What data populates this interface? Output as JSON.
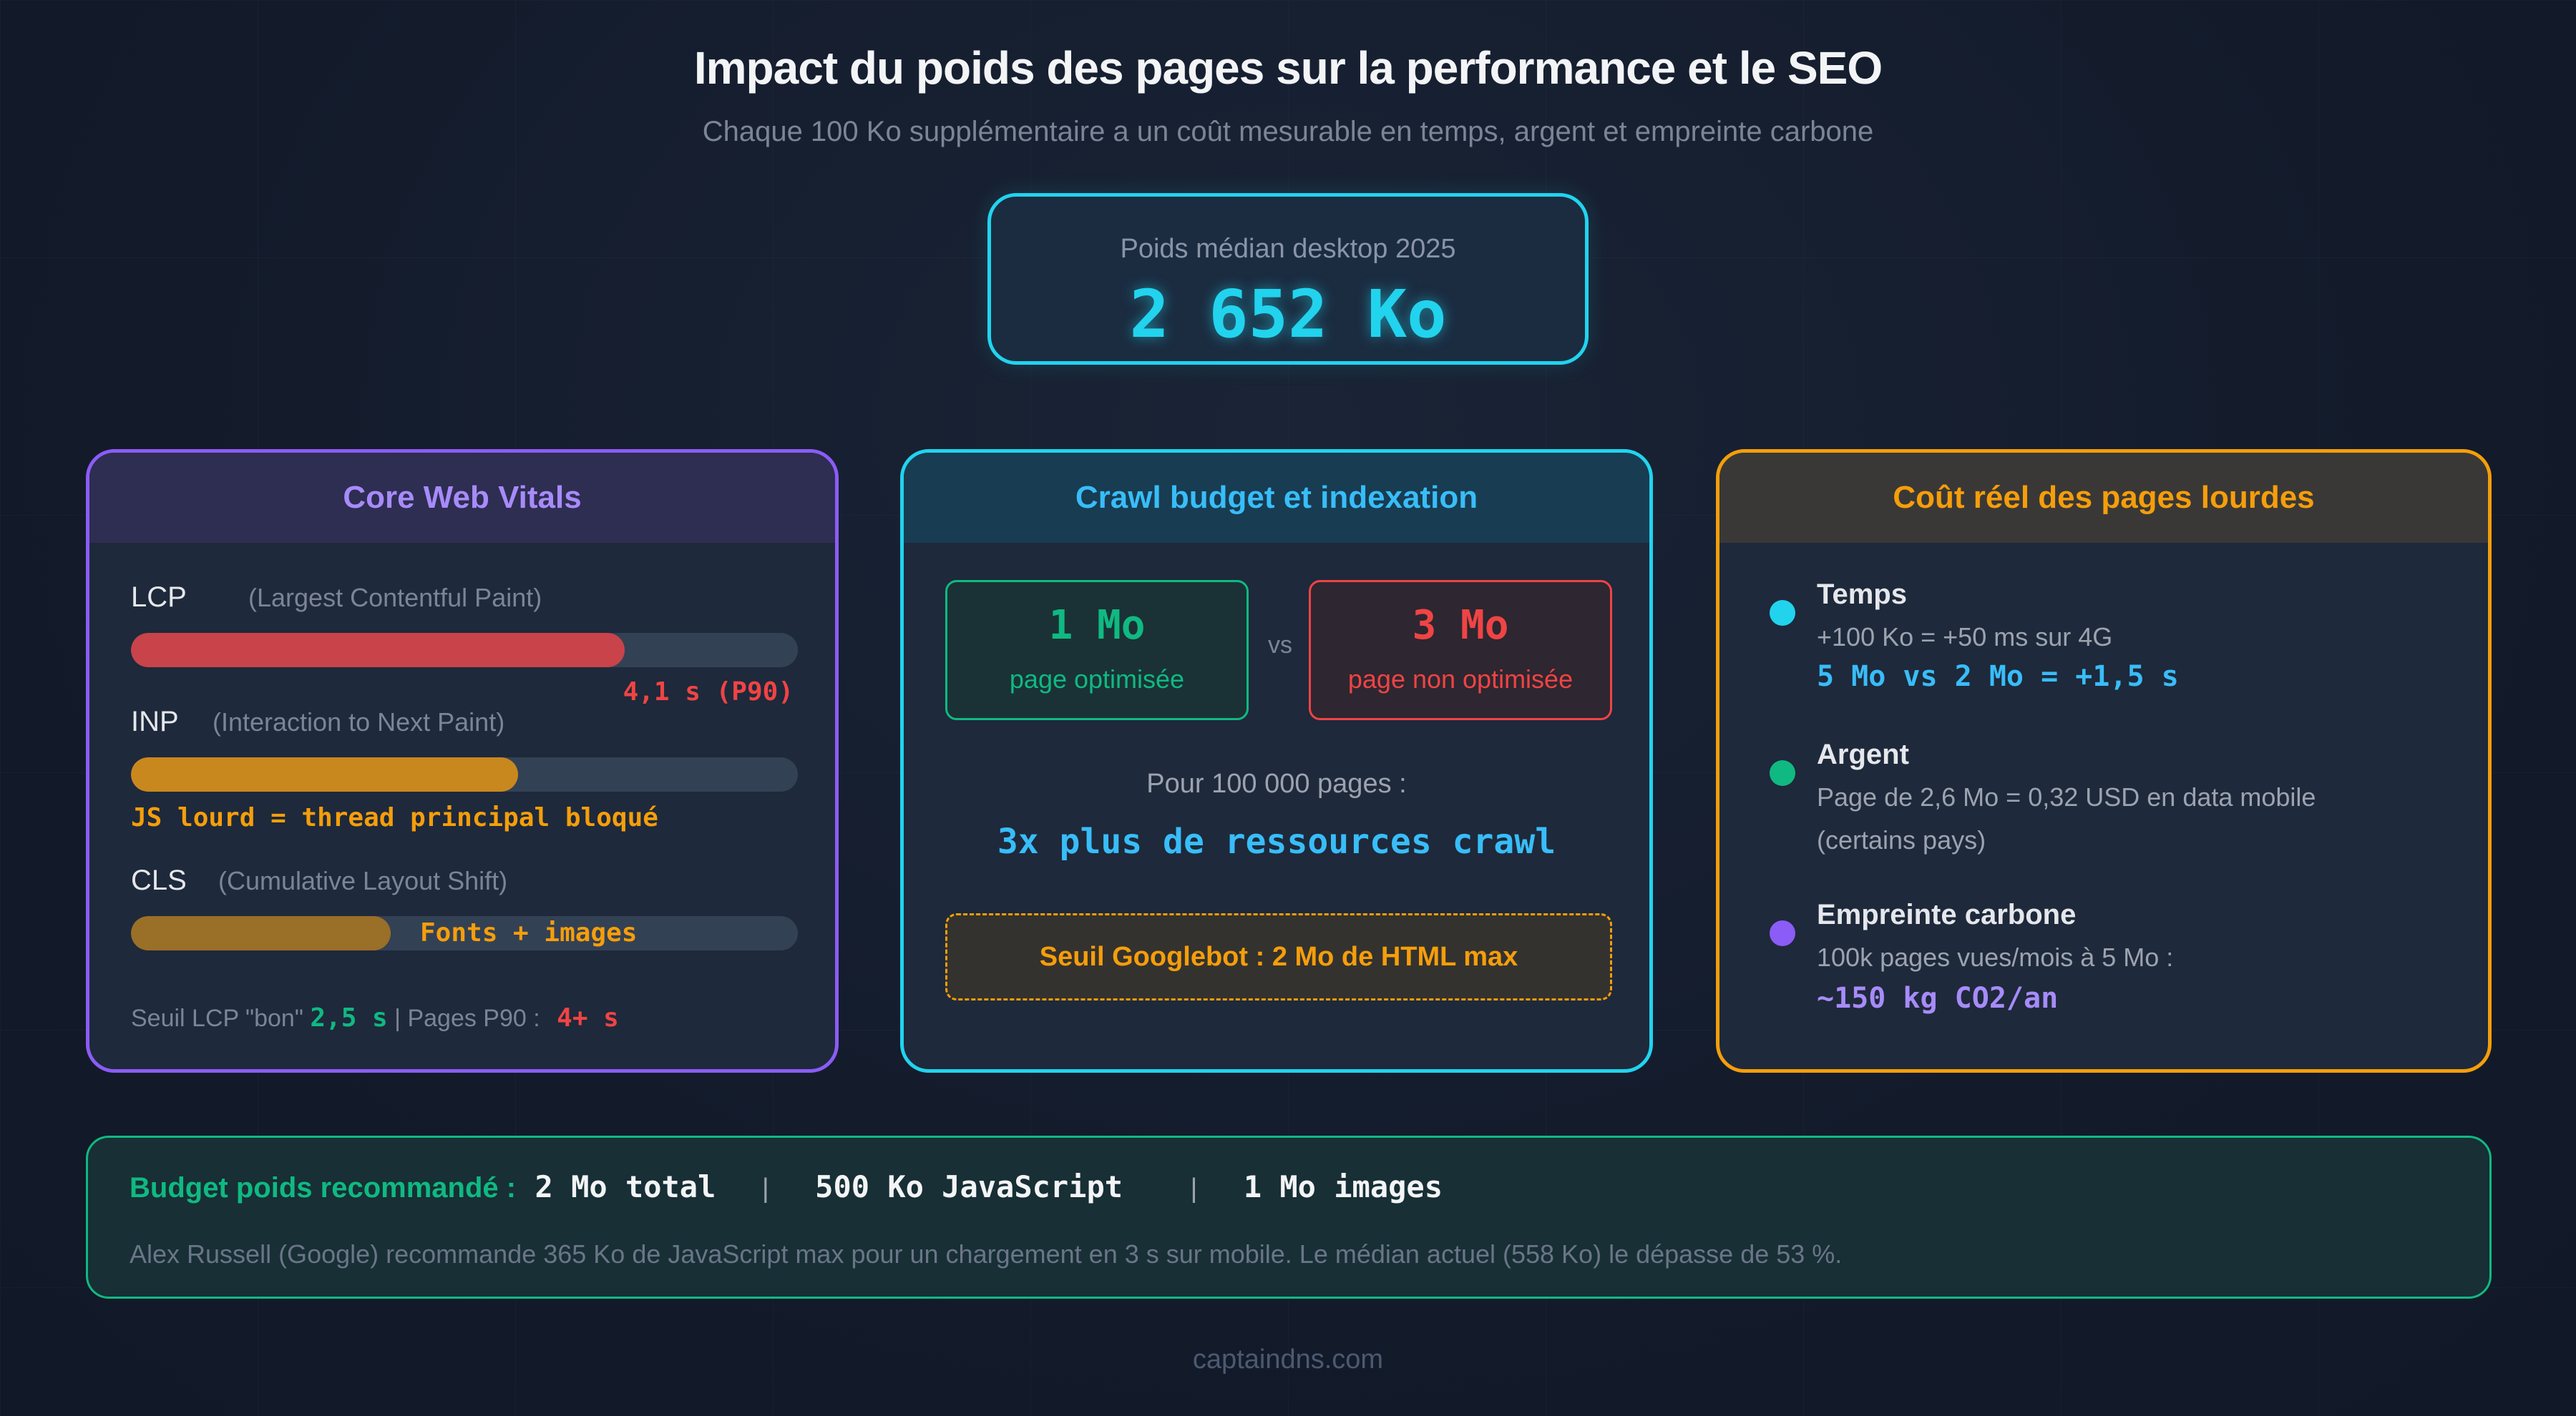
{
  "header": {
    "title": "Impact du poids des pages sur la performance et le SEO",
    "subtitle": "Chaque 100 Ko supplémentaire a un coût mesurable en temps, argent et empreinte carbone"
  },
  "median": {
    "label": "Poids médian desktop 2025",
    "value": "2 652 Ko"
  },
  "core_web_vitals": {
    "title": "Core Web Vitals",
    "metrics": [
      {
        "name": "LCP",
        "desc": "(Largest Contentful Paint)",
        "fill": 0.74,
        "color": "#c8434a",
        "note": "4,1 s (P90)",
        "note_color": "#ef4444"
      },
      {
        "name": "INP",
        "desc": "(Interaction to Next Paint)",
        "fill": 0.58,
        "color": "#c9881e",
        "note": "JS lourd = thread principal bloqué",
        "note_color": "#f59e0b"
      },
      {
        "name": "CLS",
        "desc": "(Cumulative Layout Shift)",
        "fill": 0.39,
        "color": "#9a6f28",
        "note": "Fonts + images",
        "note_color": "#f59e0b"
      }
    ],
    "footer_label": "Seuil LCP \"bon\"",
    "footer_good": "2,5 s",
    "footer_sep": "| Pages P90 :",
    "footer_bad": "4+ s"
  },
  "crawl": {
    "title": "Crawl budget et indexation",
    "good_value": "1 Mo",
    "good_label": "page optimisée",
    "vs": "vs",
    "bad_value": "3 Mo",
    "bad_label": "page non optimisée",
    "pages_label": "Pour 100 000 pages :",
    "pages_result": "3x plus de ressources crawl",
    "threshold": "Seuil Googlebot : 2 Mo de HTML max"
  },
  "cost": {
    "title": "Coût réel des pages lourdes",
    "items": [
      {
        "title": "Temps",
        "line1": "+100 Ko = +50 ms sur 4G",
        "line2": "",
        "highlight": "5 Mo vs 2 Mo = +1,5 s",
        "color": "#22d3ee",
        "highlight_color": "#38bdf8"
      },
      {
        "title": "Argent",
        "line1": "Page de 2,6 Mo = 0,32 USD en data mobile",
        "line2": "(certains pays)",
        "highlight": "",
        "color": "#10b981",
        "highlight_color": "#10b981"
      },
      {
        "title": "Empreinte carbone",
        "line1": "100k pages vues/mois à 5 Mo :",
        "line2": "",
        "highlight": "~150 kg CO2/an",
        "color": "#8b5cf6",
        "highlight_color": "#a78bfa"
      }
    ]
  },
  "budget": {
    "label": "Budget poids recommandé :",
    "total": "2 Mo total",
    "sep": "|",
    "js": "500 Ko JavaScript",
    "images": "1 Mo images",
    "note": "Alex Russell (Google) recommande 365 Ko de JavaScript max pour un chargement en 3 s sur mobile. Le médian actuel (558 Ko) le dépasse de 53 %."
  },
  "footer": "captaindns.com"
}
